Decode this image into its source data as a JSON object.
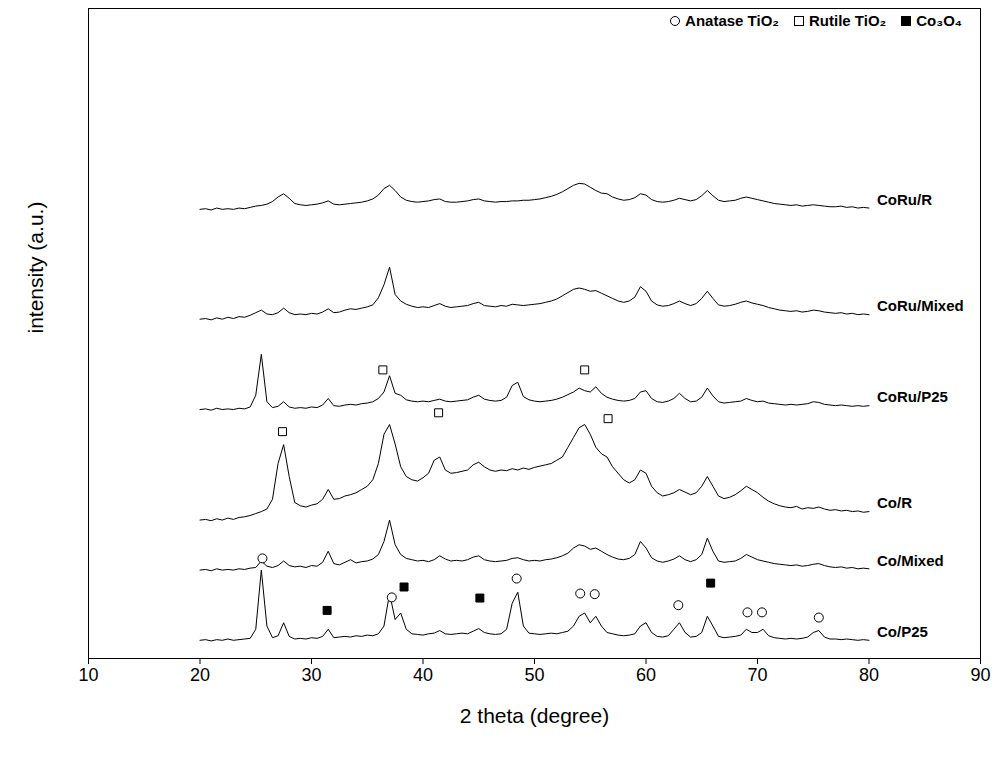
{
  "chart_data": {
    "type": "line",
    "x_label": "2 theta (degree)",
    "y_label": "intensity (a.u.)",
    "xlim": [
      10,
      90
    ],
    "xticks": [
      10,
      20,
      30,
      40,
      50,
      60,
      70,
      80,
      90
    ],
    "ylim": [
      0,
      100
    ],
    "yticks": [],
    "tick_labels": "x",
    "grid": false,
    "legend": "top-right",
    "x": [
      20,
      20.5,
      21,
      21.5,
      22,
      22.5,
      23,
      23.5,
      24,
      24.5,
      25,
      25.5,
      26,
      26.5,
      27,
      27.5,
      28,
      28.5,
      29,
      29.5,
      30,
      30.5,
      31,
      31.5,
      32,
      32.5,
      33,
      33.5,
      34,
      34.5,
      35,
      35.5,
      36,
      36.5,
      37,
      37.5,
      38,
      38.5,
      39,
      39.5,
      40,
      40.5,
      41,
      41.5,
      42,
      42.5,
      43,
      43.5,
      44,
      44.5,
      45,
      45.5,
      46,
      46.5,
      47,
      47.5,
      48,
      48.5,
      49,
      49.5,
      50,
      50.5,
      51,
      51.5,
      52,
      52.5,
      53,
      53.5,
      54,
      54.5,
      55,
      55.5,
      56,
      56.5,
      57,
      57.5,
      58,
      58.5,
      59,
      59.5,
      60,
      60.5,
      61,
      61.5,
      62,
      62.5,
      63,
      63.5,
      64,
      64.5,
      65,
      65.5,
      66,
      66.5,
      67,
      67.5,
      68,
      68.5,
      69,
      69.5,
      70,
      70.5,
      71,
      71.5,
      72,
      72.5,
      73,
      73.5,
      74,
      74.5,
      75,
      75.5,
      76,
      76.5,
      77,
      77.5,
      78,
      78.5,
      79,
      79.5,
      80
    ],
    "series": [
      {
        "name": "Co/P25",
        "type": "line",
        "color": "#000000",
        "values": [
          2.8,
          2.9,
          2.7,
          2.9,
          2.8,
          3.0,
          2.8,
          2.9,
          3.0,
          3.1,
          4.5,
          13.6,
          5.0,
          3.2,
          3.5,
          5.5,
          3.4,
          3.0,
          3.1,
          3.0,
          3.2,
          3.1,
          3.4,
          4.5,
          3.2,
          3.3,
          3.4,
          3.3,
          3.5,
          3.4,
          3.6,
          3.5,
          3.8,
          5.0,
          10.0,
          6.0,
          7.0,
          4.5,
          3.8,
          3.7,
          3.6,
          3.8,
          3.9,
          4.3,
          3.8,
          3.7,
          3.8,
          3.9,
          3.8,
          4.2,
          4.6,
          4.0,
          3.8,
          3.7,
          3.8,
          4.5,
          8.5,
          10.2,
          5.0,
          3.9,
          3.8,
          3.7,
          3.8,
          3.9,
          3.8,
          4.0,
          4.2,
          5.0,
          6.5,
          7.0,
          5.5,
          6.5,
          5.0,
          4.0,
          3.8,
          3.6,
          3.5,
          3.6,
          3.8,
          5.0,
          5.5,
          4.0,
          3.4,
          3.3,
          3.5,
          4.5,
          5.5,
          4.0,
          3.3,
          3.4,
          4.0,
          6.5,
          5.0,
          3.4,
          3.2,
          3.3,
          3.4,
          3.6,
          4.5,
          4.0,
          4.0,
          4.5,
          3.5,
          3.2,
          3.1,
          3.0,
          3.1,
          3.0,
          3.1,
          3.3,
          4.0,
          4.3,
          3.3,
          3.0,
          3.0,
          2.9,
          3.0,
          2.9,
          2.8,
          2.9,
          2.8
        ]
      },
      {
        "name": "Co/Mixed",
        "type": "line",
        "color": "#000000",
        "values": [
          13.6,
          13.7,
          13.5,
          13.8,
          13.6,
          13.7,
          13.6,
          13.8,
          13.7,
          13.9,
          14.0,
          15.0,
          14.2,
          14.0,
          14.3,
          15.0,
          14.3,
          14.1,
          14.2,
          14.0,
          14.3,
          14.2,
          14.8,
          16.5,
          14.6,
          14.4,
          14.8,
          15.2,
          14.7,
          14.9,
          15.0,
          15.3,
          16.0,
          18.0,
          21.3,
          17.5,
          16.0,
          15.4,
          15.2,
          15.0,
          15.1,
          14.9,
          15.2,
          15.8,
          15.3,
          15.0,
          15.1,
          15.0,
          15.2,
          15.6,
          15.8,
          15.2,
          15.0,
          14.9,
          15.0,
          15.1,
          15.4,
          15.5,
          15.2,
          15.0,
          15.1,
          15.0,
          15.2,
          15.3,
          15.5,
          15.8,
          16.2,
          17.0,
          17.5,
          17.3,
          16.8,
          17.0,
          16.5,
          16.0,
          15.6,
          15.3,
          15.2,
          15.4,
          16.0,
          18.0,
          17.0,
          15.5,
          15.0,
          14.8,
          15.0,
          15.3,
          15.8,
          15.2,
          14.9,
          15.2,
          16.0,
          18.5,
          16.5,
          15.0,
          14.8,
          14.9,
          15.0,
          15.4,
          16.0,
          15.6,
          15.2,
          15.0,
          14.8,
          14.6,
          14.5,
          14.4,
          14.3,
          14.4,
          14.2,
          14.3,
          14.5,
          14.6,
          14.3,
          14.1,
          14.0,
          14.1,
          13.9,
          14.0,
          13.8,
          13.9,
          13.8
        ]
      },
      {
        "name": "Co/R",
        "type": "line",
        "color": "#000000",
        "values": [
          21.3,
          21.4,
          21.2,
          21.5,
          21.3,
          21.6,
          21.4,
          21.7,
          21.8,
          22.0,
          22.3,
          22.6,
          23.0,
          24.5,
          30.0,
          32.9,
          28.0,
          24.0,
          23.5,
          23.3,
          23.6,
          23.8,
          24.5,
          26.0,
          24.5,
          24.6,
          25.0,
          25.2,
          25.5,
          26.0,
          26.5,
          27.5,
          30.0,
          34.5,
          36.0,
          33.0,
          29.5,
          28.0,
          27.5,
          27.3,
          27.8,
          28.5,
          30.5,
          31.0,
          29.0,
          28.5,
          28.6,
          28.8,
          29.0,
          29.8,
          30.2,
          29.5,
          29.0,
          28.8,
          29.0,
          28.9,
          29.2,
          29.0,
          29.3,
          29.1,
          29.4,
          29.6,
          29.8,
          30.0,
          30.5,
          31.0,
          32.5,
          34.0,
          35.5,
          36.0,
          34.5,
          32.5,
          31.5,
          31.0,
          29.5,
          28.5,
          27.5,
          27.0,
          27.5,
          29.0,
          28.5,
          26.5,
          25.5,
          25.0,
          25.2,
          25.5,
          26.0,
          25.6,
          25.2,
          25.5,
          26.5,
          28.0,
          26.5,
          25.0,
          24.6,
          24.8,
          25.2,
          25.8,
          26.5,
          26.0,
          25.5,
          24.8,
          24.2,
          23.8,
          23.5,
          23.3,
          23.2,
          23.4,
          23.0,
          23.2,
          23.1,
          23.3,
          23.0,
          22.8,
          22.9,
          22.7,
          22.8,
          22.6,
          22.7,
          22.5,
          22.6
        ]
      },
      {
        "name": "CoRu/P25",
        "type": "line",
        "color": "#000000",
        "values": [
          38.3,
          38.4,
          38.2,
          38.5,
          38.3,
          38.4,
          38.3,
          38.5,
          38.4,
          38.7,
          40.5,
          46.8,
          39.5,
          38.6,
          38.8,
          39.5,
          38.7,
          38.5,
          38.6,
          38.5,
          38.7,
          38.6,
          39.0,
          40.0,
          38.9,
          38.8,
          39.0,
          39.1,
          39.0,
          39.2,
          39.3,
          39.5,
          40.0,
          41.0,
          43.5,
          40.8,
          40.5,
          39.8,
          39.6,
          39.5,
          39.6,
          39.5,
          39.7,
          39.9,
          39.6,
          39.5,
          39.6,
          39.7,
          39.8,
          40.2,
          40.5,
          39.9,
          39.7,
          39.6,
          39.7,
          40.2,
          42.0,
          42.5,
          40.3,
          39.8,
          39.6,
          39.5,
          39.6,
          39.7,
          39.9,
          40.2,
          40.6,
          41.0,
          41.6,
          41.2,
          41.0,
          41.8,
          40.8,
          40.2,
          39.9,
          39.7,
          39.6,
          39.7,
          40.0,
          41.0,
          41.2,
          40.0,
          39.5,
          39.4,
          39.6,
          40.0,
          40.8,
          40.0,
          39.5,
          39.6,
          40.2,
          41.6,
          40.4,
          39.5,
          39.3,
          39.4,
          39.5,
          39.6,
          40.0,
          39.7,
          39.5,
          39.6,
          39.3,
          39.2,
          39.1,
          39.0,
          39.1,
          39.0,
          39.1,
          39.2,
          39.5,
          39.4,
          39.1,
          39.0,
          38.9,
          39.0,
          38.9,
          38.8,
          38.9,
          38.8,
          38.9
        ]
      },
      {
        "name": "CoRu/Mixed",
        "type": "line",
        "color": "#000000",
        "values": [
          52.2,
          52.3,
          52.1,
          52.4,
          52.2,
          52.5,
          52.3,
          52.6,
          52.5,
          52.8,
          53.2,
          53.6,
          53.0,
          52.9,
          53.2,
          53.9,
          53.2,
          52.9,
          53.0,
          52.9,
          53.1,
          53.0,
          53.3,
          53.8,
          53.2,
          53.3,
          53.6,
          53.8,
          53.7,
          53.9,
          54.1,
          54.4,
          55.5,
          57.5,
          60.2,
          56.0,
          55.0,
          54.5,
          54.2,
          54.0,
          54.1,
          54.0,
          54.3,
          54.6,
          54.2,
          54.0,
          54.1,
          54.2,
          54.3,
          54.6,
          54.8,
          54.3,
          54.2,
          54.1,
          54.3,
          54.2,
          54.5,
          54.4,
          54.3,
          54.4,
          54.5,
          54.6,
          54.8,
          55.0,
          55.3,
          55.8,
          56.3,
          56.8,
          57.0,
          56.8,
          56.5,
          56.6,
          56.2,
          55.8,
          55.4,
          55.0,
          54.8,
          55.0,
          55.6,
          57.2,
          56.5,
          55.0,
          54.4,
          54.2,
          54.3,
          54.6,
          55.0,
          54.6,
          54.3,
          54.6,
          55.4,
          56.5,
          55.4,
          54.4,
          54.2,
          54.3,
          54.5,
          54.8,
          55.0,
          54.7,
          54.5,
          54.3,
          54.0,
          53.8,
          53.6,
          53.5,
          53.4,
          53.5,
          53.3,
          53.4,
          53.6,
          53.5,
          53.3,
          53.2,
          53.1,
          53.2,
          53.0,
          53.1,
          52.9,
          53.0,
          52.9
        ]
      },
      {
        "name": "CoRu/R",
        "type": "line",
        "color": "#000000",
        "values": [
          69.1,
          69.2,
          69.0,
          69.3,
          69.1,
          69.2,
          69.1,
          69.3,
          69.2,
          69.4,
          69.6,
          69.7,
          69.9,
          70.3,
          71.0,
          71.5,
          70.8,
          70.0,
          69.8,
          69.7,
          69.8,
          69.9,
          70.1,
          70.4,
          69.9,
          69.8,
          69.9,
          70.0,
          70.1,
          70.2,
          70.4,
          70.7,
          71.3,
          72.3,
          72.8,
          72.0,
          71.0,
          70.5,
          70.3,
          70.2,
          70.3,
          70.4,
          70.6,
          70.7,
          70.3,
          70.2,
          70.2,
          70.3,
          70.4,
          70.6,
          70.7,
          70.4,
          70.3,
          70.2,
          70.3,
          70.3,
          70.4,
          70.4,
          70.5,
          70.5,
          70.6,
          70.7,
          70.9,
          71.1,
          71.4,
          71.8,
          72.3,
          72.8,
          73.1,
          73.0,
          72.5,
          72.0,
          71.6,
          71.5,
          71.0,
          70.7,
          70.5,
          70.6,
          70.9,
          71.5,
          71.3,
          70.6,
          70.3,
          70.2,
          70.3,
          70.5,
          70.8,
          70.6,
          70.4,
          70.6,
          71.2,
          72.0,
          71.2,
          70.5,
          70.3,
          70.4,
          70.5,
          70.8,
          71.0,
          70.8,
          70.6,
          70.4,
          70.2,
          70.0,
          69.9,
          69.8,
          69.7,
          69.8,
          69.6,
          69.7,
          69.8,
          69.7,
          69.6,
          69.5,
          69.5,
          69.6,
          69.4,
          69.5,
          69.3,
          69.4,
          69.3
        ]
      },
      {
        "name": "Anatase TiO₂",
        "type": "scatter",
        "marker": "circle-open",
        "color": "#000000",
        "x": [
          25.6,
          37.2,
          48.4,
          54.1,
          55.4,
          62.9,
          69.1,
          70.4,
          75.5
        ],
        "values": [
          15.4,
          9.4,
          12.3,
          10.0,
          9.9,
          8.2,
          7.1,
          7.1,
          6.3
        ]
      },
      {
        "name": "Rutile TiO₂",
        "type": "scatter",
        "marker": "square-open",
        "color": "#000000",
        "x": [
          27.4,
          36.4,
          41.4,
          54.5,
          56.6
        ],
        "values": [
          34.9,
          44.4,
          37.8,
          44.4,
          36.9
        ]
      },
      {
        "name": "Co₃O₄",
        "type": "scatter",
        "marker": "square",
        "color": "#000000",
        "x": [
          31.4,
          38.3,
          45.1,
          65.8
        ],
        "values": [
          7.4,
          11.0,
          9.3,
          11.6
        ]
      }
    ]
  }
}
